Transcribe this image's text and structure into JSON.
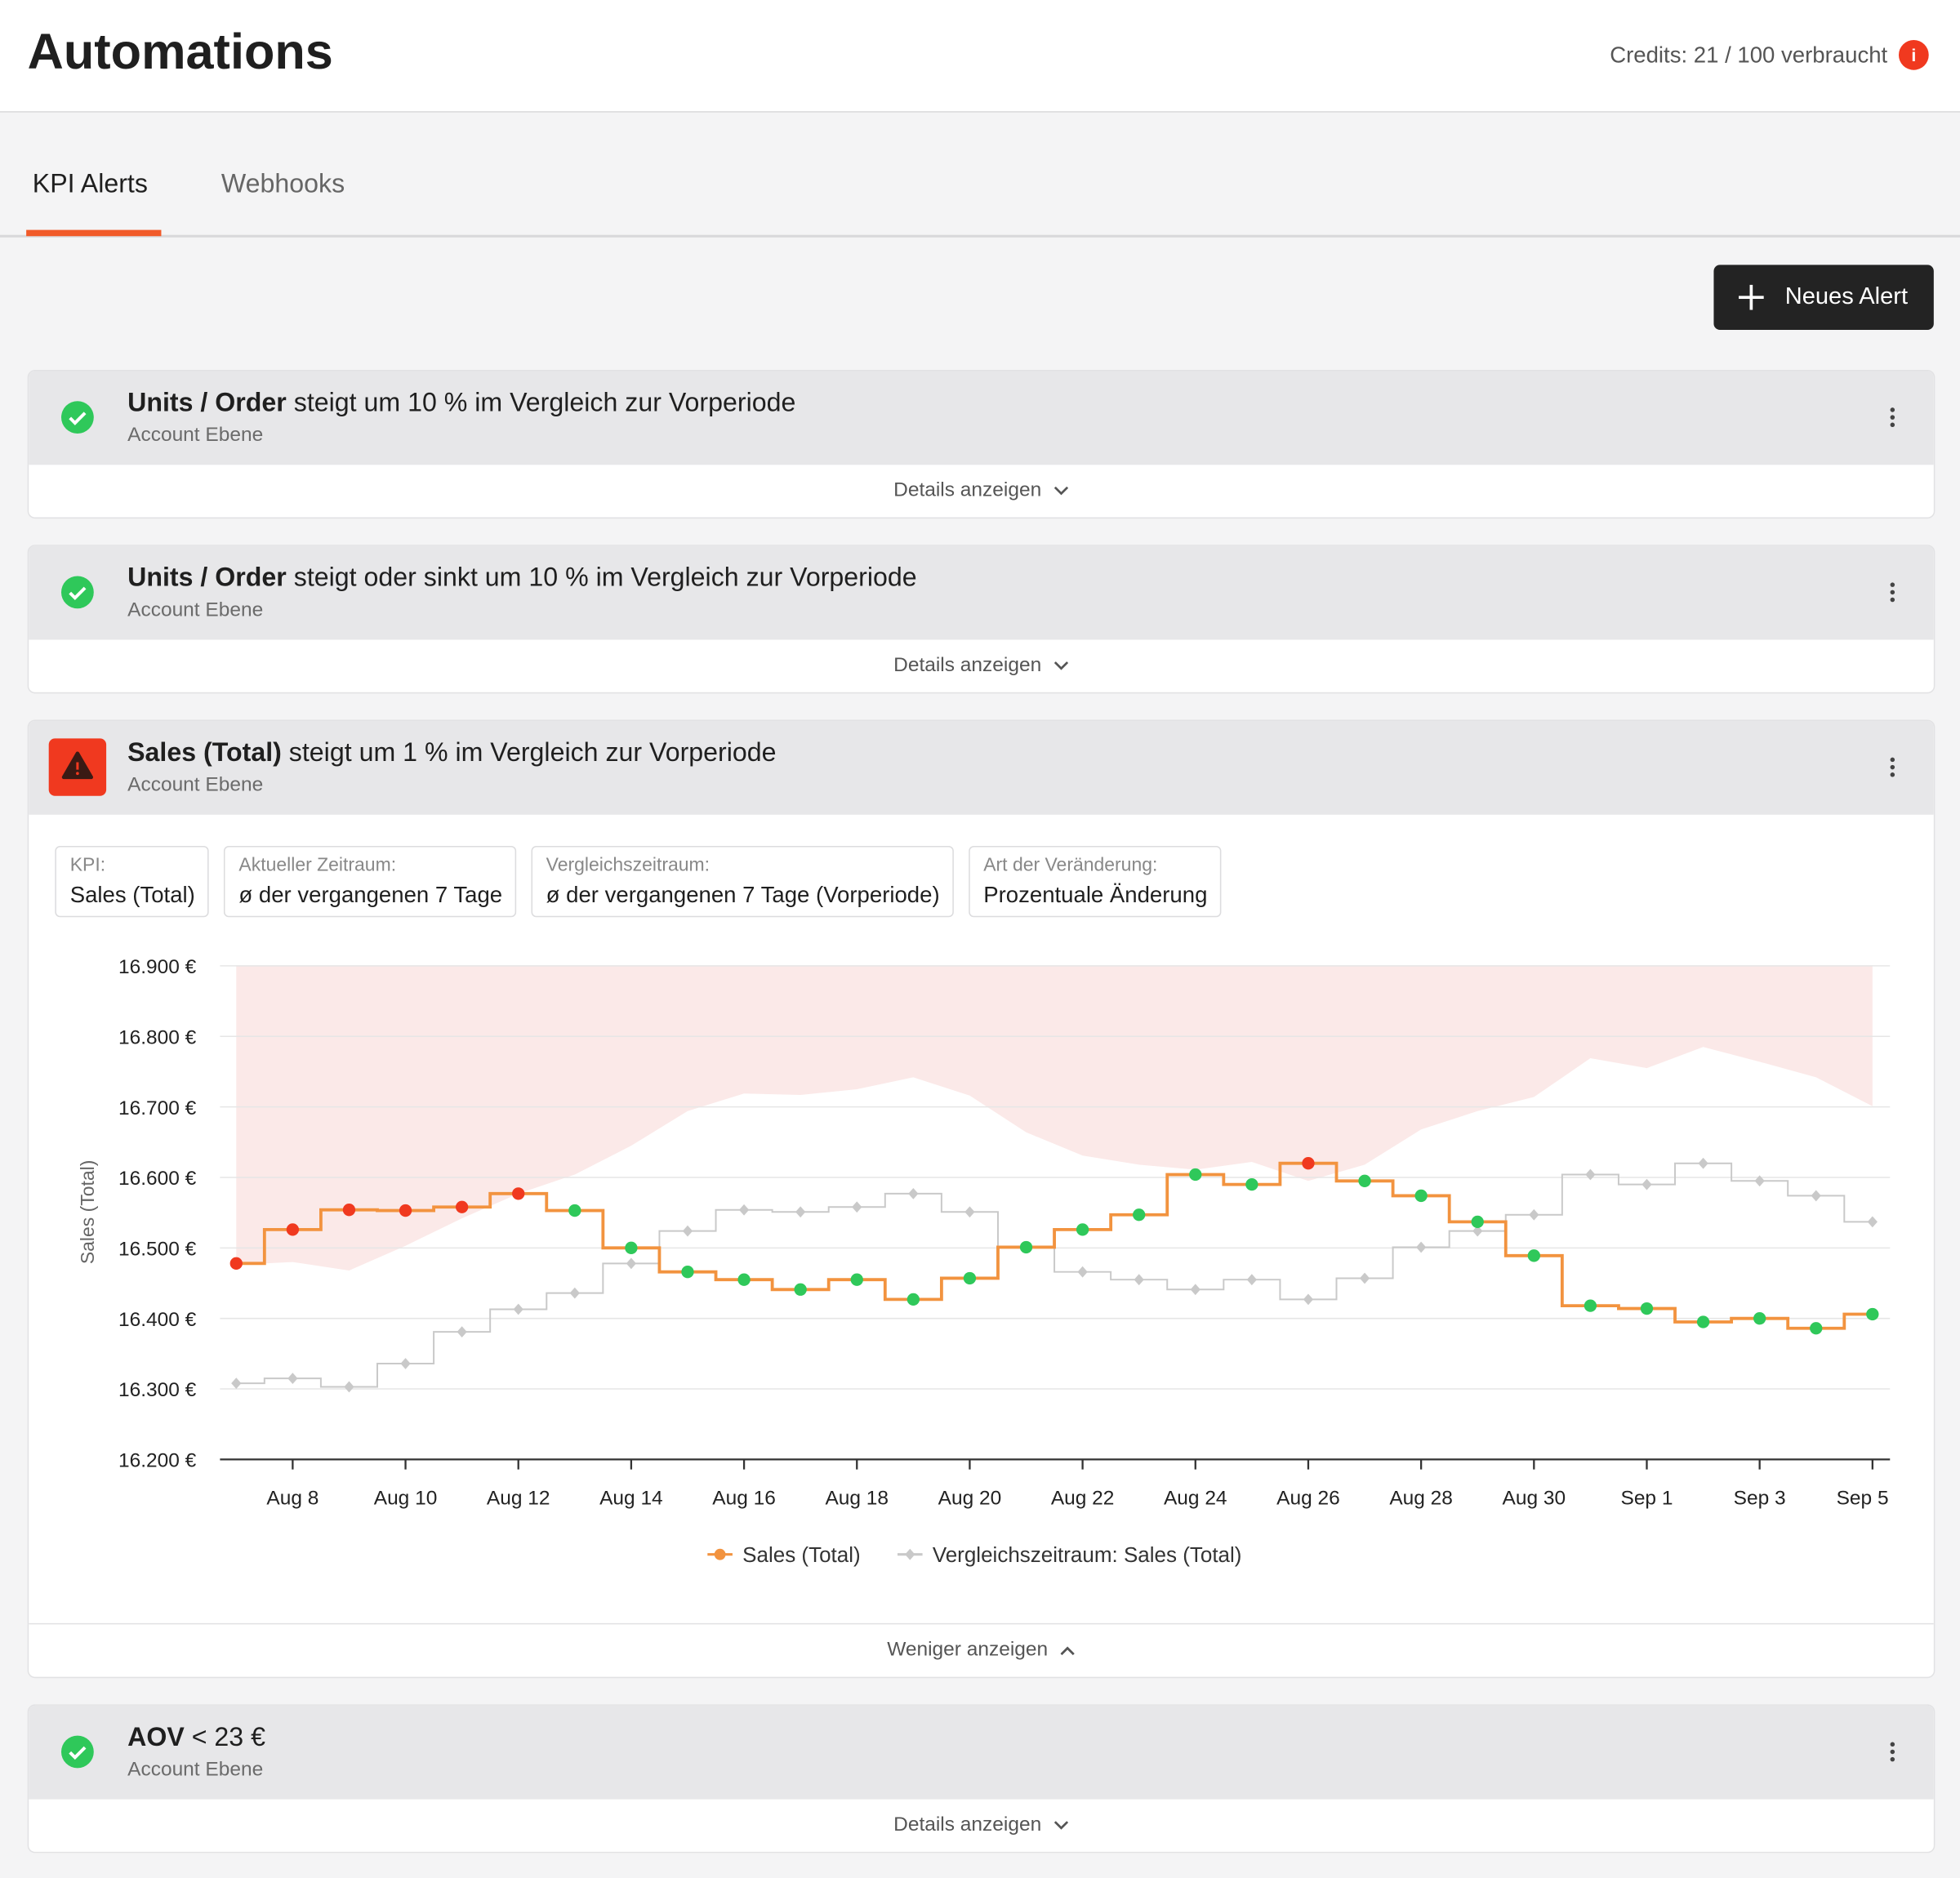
{
  "header": {
    "title": "Automations",
    "credits": "Credits: 21 / 100 verbraucht",
    "info": "i"
  },
  "tabs": [
    {
      "label": "KPI Alerts",
      "active": true
    },
    {
      "label": "Webhooks",
      "active": false
    }
  ],
  "button": {
    "label": "Neues Alert"
  },
  "alerts": [
    {
      "kpi": "Units / Order",
      "condition": "steigt um 10 % im Vergleich zur Vorperiode",
      "level": "Account Ebene",
      "status": "ok",
      "toggle": "Details anzeigen"
    },
    {
      "kpi": "Units / Order",
      "condition": "steigt oder sinkt um 10 % im Vergleich zur Vorperiode",
      "level": "Account Ebene",
      "status": "ok",
      "toggle": "Details anzeigen"
    },
    {
      "kpi": "Sales (Total)",
      "condition": "steigt um 1 % im Vergleich zur Vorperiode",
      "level": "Account Ebene",
      "status": "alert",
      "toggle": "Weniger anzeigen",
      "expanded": true,
      "fields": [
        {
          "label": "KPI:",
          "value": "Sales (Total)"
        },
        {
          "label": "Aktueller Zeitraum:",
          "value": "ø der vergangenen 7 Tage"
        },
        {
          "label": "Vergleichszeitraum:",
          "value": "ø der vergangenen 7 Tage (Vorperiode)"
        },
        {
          "label": "Art der Veränderung:",
          "value": "Prozentuale Änderung"
        }
      ]
    },
    {
      "kpi": "AOV",
      "condition": "< 23 €",
      "level": "Account Ebene",
      "status": "ok",
      "toggle": "Details anzeigen"
    }
  ],
  "chart_data": {
    "type": "line",
    "step": true,
    "y_label": "Sales (Total)",
    "categories": [
      null,
      "Aug 8",
      null,
      "Aug 10",
      null,
      "Aug 12",
      null,
      "Aug 14",
      null,
      "Aug 16",
      null,
      "Aug 18",
      null,
      "Aug 20",
      null,
      "Aug 22",
      null,
      "Aug 24",
      null,
      "Aug 26",
      null,
      "Aug 28",
      null,
      "Aug 30",
      null,
      "Sep 1",
      null,
      "Sep 3",
      null,
      "Sep 5"
    ],
    "ylim": [
      16200,
      16900
    ],
    "yticks": [
      {
        "value": 16200,
        "label": "16.200 €"
      },
      {
        "value": 16300,
        "label": "16.300 €"
      },
      {
        "value": 16400,
        "label": "16.400 €"
      },
      {
        "value": 16500,
        "label": "16.500 €"
      },
      {
        "value": 16600,
        "label": "16.600 €"
      },
      {
        "value": 16700,
        "label": "16.700 €"
      },
      {
        "value": 16800,
        "label": "16.800 €"
      },
      {
        "value": 16900,
        "label": "16.900 €"
      }
    ],
    "grid": true,
    "band_color": "#fbe9e8",
    "band_upper": 16900,
    "band_lower": [
      16476,
      16480,
      16468,
      16503,
      16542,
      16577,
      16604,
      16645,
      16694,
      16719,
      16717,
      16725,
      16742,
      16716,
      16664,
      16631,
      16618,
      16611,
      16622,
      16595,
      16618,
      16668,
      16694,
      16714,
      16769,
      16755,
      16785,
      16764,
      16742,
      16701
    ],
    "series": [
      {
        "name": "Sales (Total)",
        "color": "#f2933f",
        "marker": "circle",
        "values": [
          16478,
          16526,
          16554,
          16553,
          16558,
          16577,
          16553,
          16500,
          16466,
          16455,
          16441,
          16455,
          16427,
          16457,
          16501,
          16526,
          16547,
          16604,
          16590,
          16620,
          16595,
          16574,
          16537,
          16489,
          16418,
          16414,
          16395,
          16400,
          16386,
          16406
        ],
        "point_colors": [
          "#f0391f",
          "#f0391f",
          "#f0391f",
          "#f0391f",
          "#f0391f",
          "#f0391f",
          "#2fc85a",
          "#2fc85a",
          "#2fc85a",
          "#2fc85a",
          "#2fc85a",
          "#2fc85a",
          "#2fc85a",
          "#2fc85a",
          "#2fc85a",
          "#2fc85a",
          "#2fc85a",
          "#2fc85a",
          "#2fc85a",
          "#f0391f",
          "#2fc85a",
          "#2fc85a",
          "#2fc85a",
          "#2fc85a",
          "#2fc85a",
          "#2fc85a",
          "#2fc85a",
          "#2fc85a",
          "#2fc85a",
          "#2fc85a"
        ]
      },
      {
        "name": "Vergleichszeitraum: Sales (Total)",
        "color": "#c9c9c9",
        "marker": "diamond",
        "values": [
          16308,
          16315,
          16303,
          16336,
          16381,
          16413,
          16436,
          16478,
          16524,
          16554,
          16551,
          16558,
          16577,
          16551,
          16501,
          16466,
          16455,
          16441,
          16455,
          16427,
          16457,
          16501,
          16524,
          16547,
          16604,
          16590,
          16620,
          16595,
          16574,
          16537
        ]
      }
    ]
  }
}
